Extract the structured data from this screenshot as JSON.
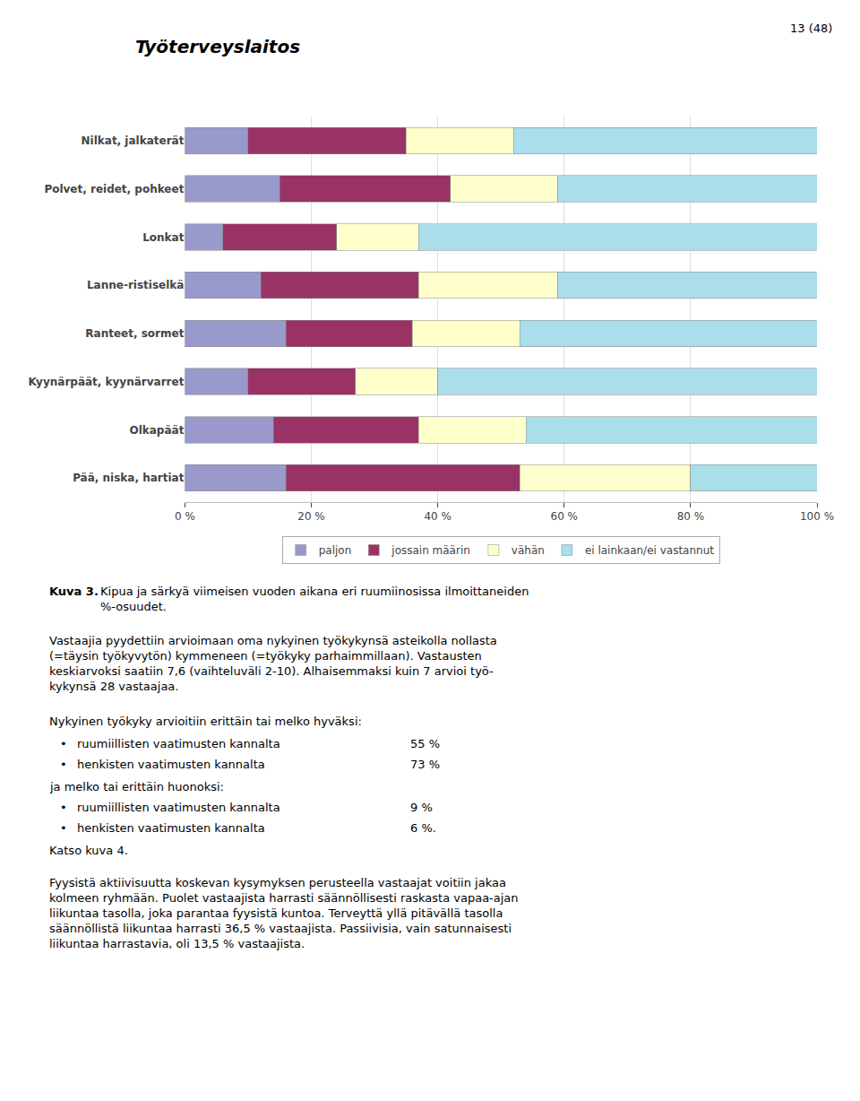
{
  "chart_data": {
    "type": "bar",
    "orientation": "horizontal",
    "stacked": true,
    "categories": [
      "Nilkat, jalkaterät",
      "Polvet, reidet, pohkeet",
      "Lonkat",
      "Lanne-ristiselkä",
      "Ranteet, sormet",
      "Kyynärpäät, kyynärvarret",
      "Olkapäät",
      "Pää, niska, hartiat"
    ],
    "series": [
      {
        "name": "paljon",
        "color": "#9999cc",
        "values": [
          10,
          15,
          6,
          12,
          16,
          10,
          14,
          16
        ]
      },
      {
        "name": "jossain määrin",
        "color": "#993366",
        "values": [
          25,
          27,
          18,
          25,
          20,
          17,
          23,
          37
        ]
      },
      {
        "name": "vähän",
        "color": "#ffffcc",
        "values": [
          17,
          17,
          13,
          22,
          17,
          13,
          17,
          27
        ]
      },
      {
        "name": "ei lainkaan/ei vastannut",
        "color": "#aadeeb",
        "values": [
          48,
          41,
          63,
          41,
          47,
          60,
          46,
          20
        ]
      }
    ],
    "xlim": [
      0,
      100
    ],
    "xticks": [
      {
        "value": 0,
        "label": "0 %"
      },
      {
        "value": 20,
        "label": "20 %"
      },
      {
        "value": 40,
        "label": "40 %"
      },
      {
        "value": 60,
        "label": "60 %"
      },
      {
        "value": 80,
        "label": "80 %"
      },
      {
        "value": 100,
        "label": "100 %"
      }
    ],
    "grid": true,
    "legend": "bottom",
    "annotations": [
      "13 (48)",
      "Työterveyslaitos",
      "Kuva 3.",
      "Kipua ja särkyä viimeisen vuoden aikana eri ruumiinosissa ilmoittaneiden\n%-osuudet.",
      "Vastaajia pyydettiin arvioimaan oma nykyinen työkykynsä asteikolla nollasta\n(=täysin työkyvytön) kymmeneen (=työkyky parhaimmillaan). Vastausten\nkeskiarvoksi saatiin 7,6 (vaihteluväli 2-10). Alhaisemmaksi kuin 7 arvioi työ-\nkykynsä 28 vastaajaa.",
      "Nykyinen työkyky arvioitiin erittäin tai melko hyväksi:",
      "•",
      "ruumiillisten vaatimusten kannalta",
      "55 %",
      "•",
      "henkisten vaatimusten kannalta",
      "73 %",
      "ja melko tai erittäin huonoksi:",
      "•",
      "ruumiillisten vaatimusten kannalta",
      "9 %",
      "•",
      "henkisten vaatimusten kannalta",
      "6 %.",
      "Katso kuva 4.",
      "Fyysistä aktiivisuutta koskevan kysymyksen perusteella vastaajat voitiin jakaa\nkolmeen ryhmään. Puolet vastaajista harrasti säännöllisesti raskasta vapaa-ajan\nliikuntaa tasolla, joka parantaa fyysistä kuntoa. Terveyttä yllä pitävällä tasolla\nsäännöllistä liikuntaa harrasti 36,5 % vastaajista. Passiivisia, vain satunnaisesti\nliikuntaa harrastavia, oli 13,5 % vastaajista."
    ]
  }
}
